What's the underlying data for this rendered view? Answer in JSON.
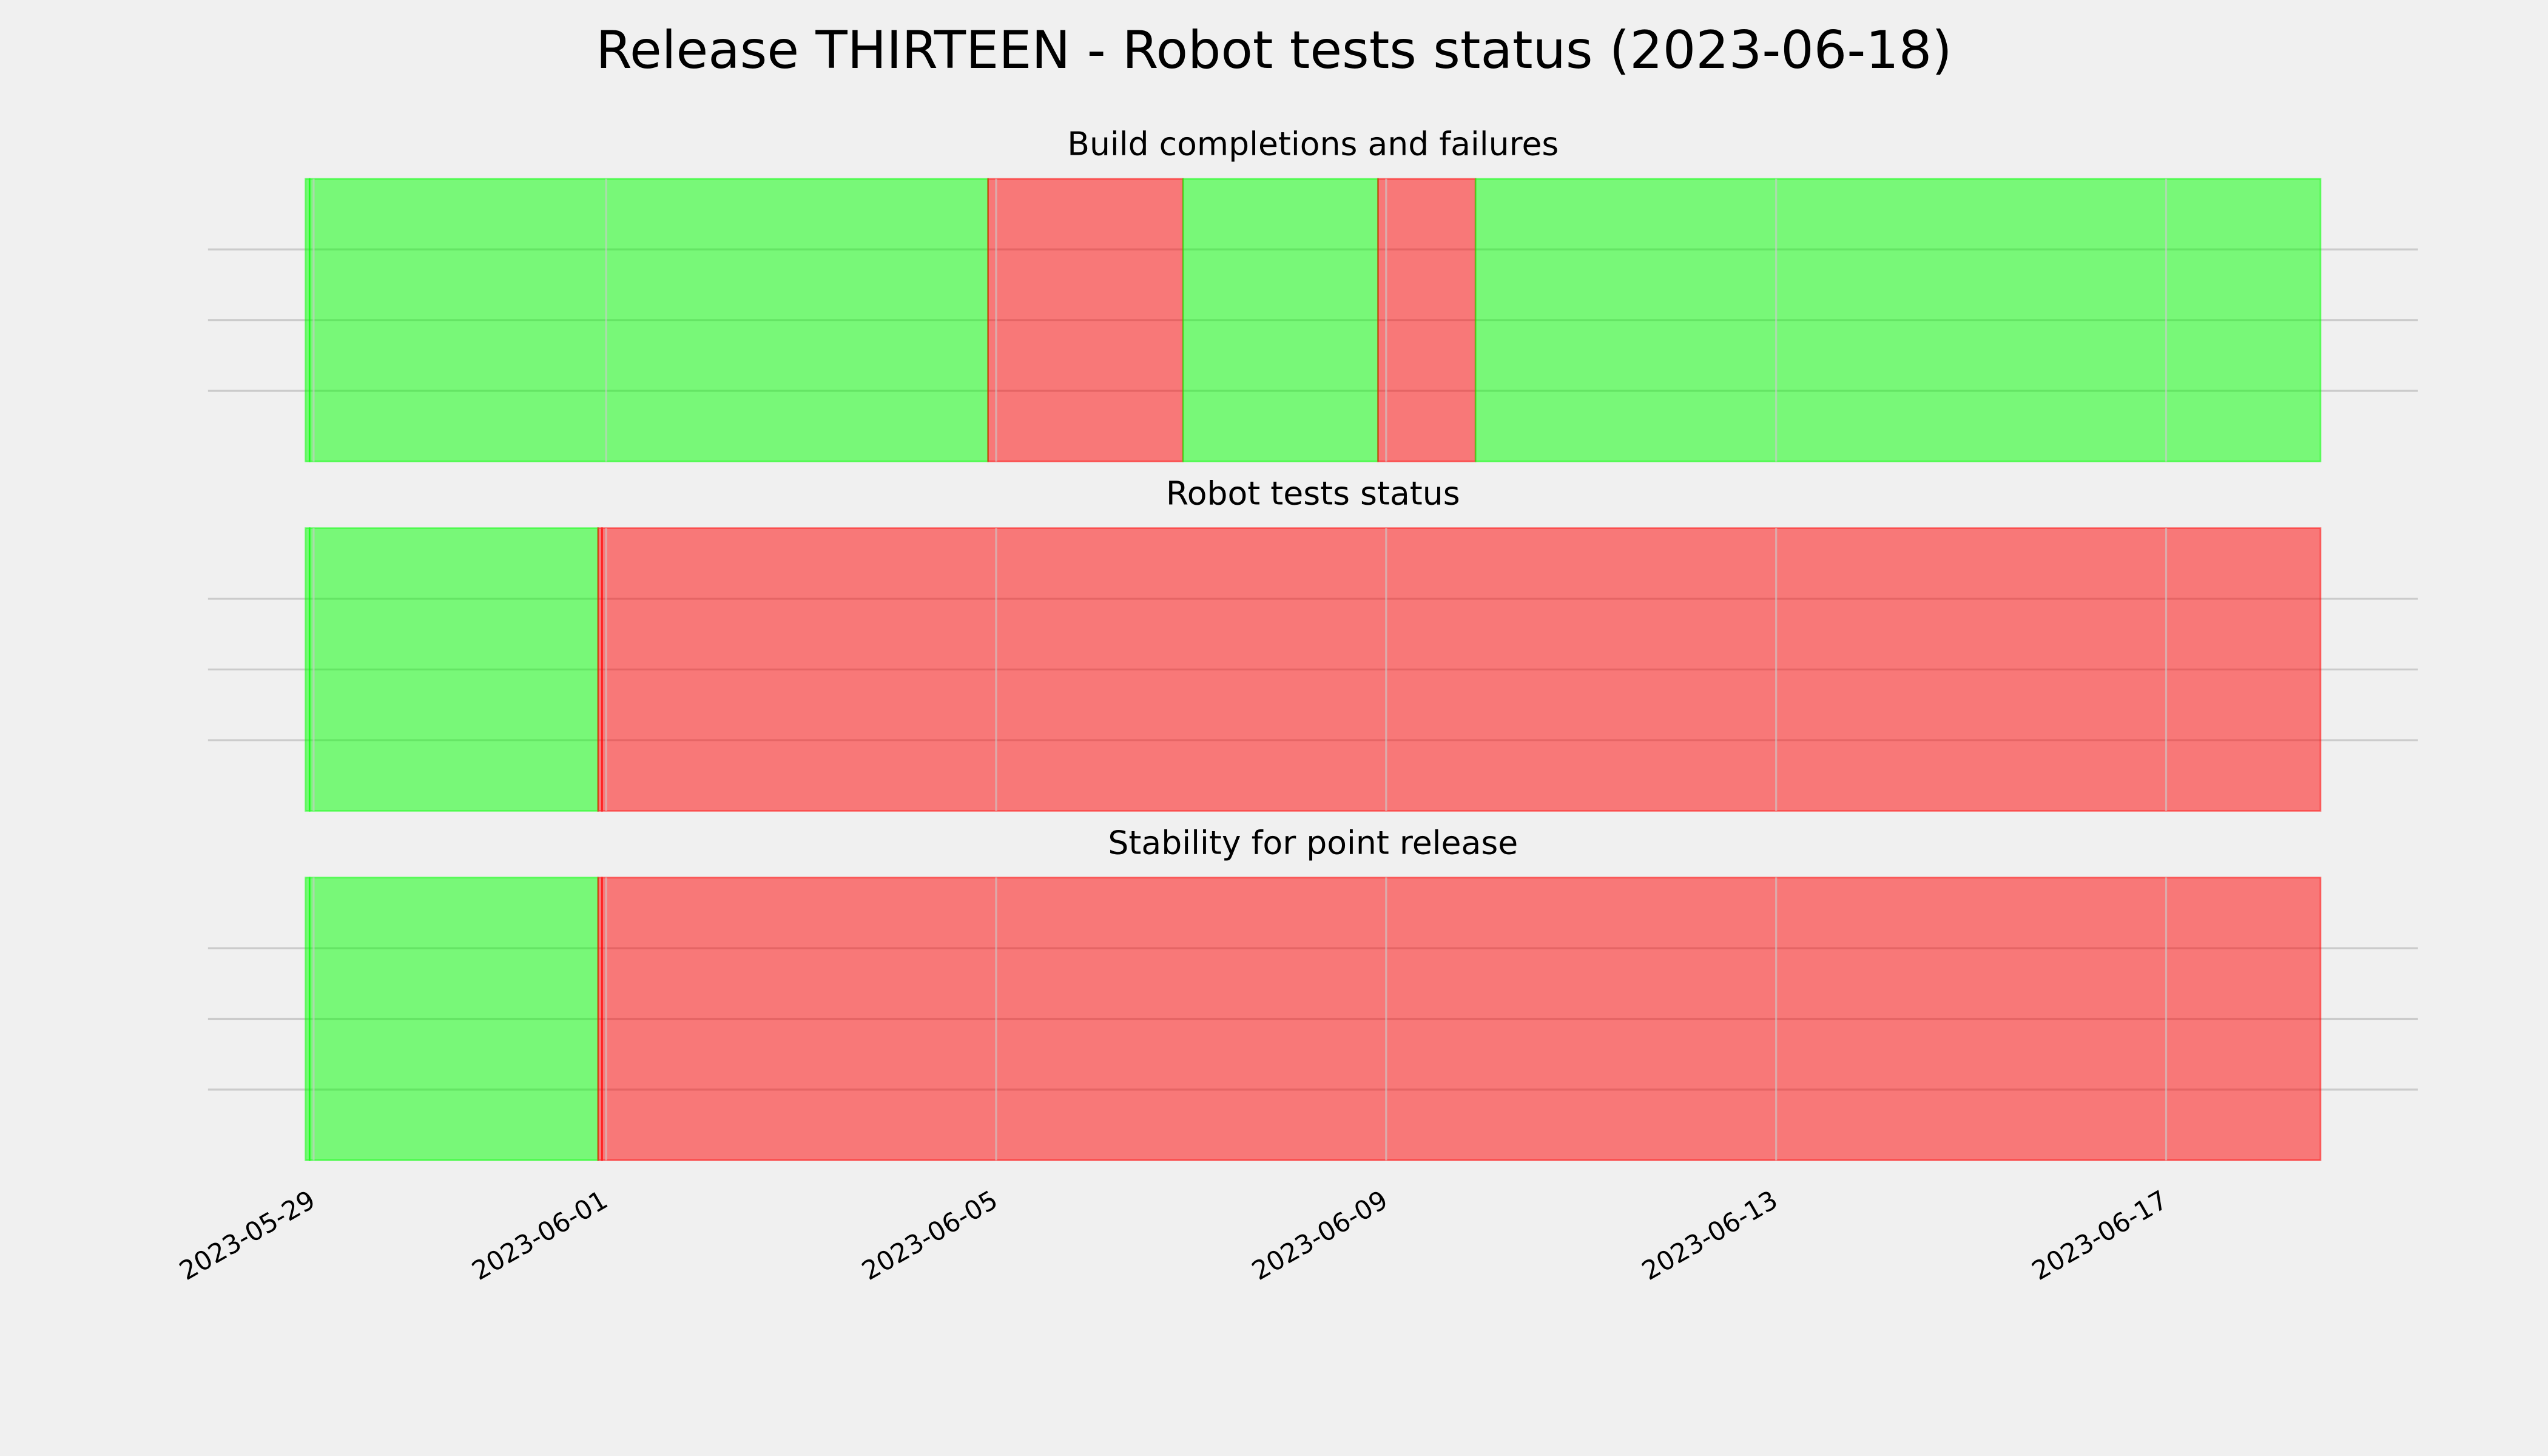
{
  "title": "Release THIRTEEN - Robot tests status (2023-06-18)",
  "xlim": [
    "2023-05-27 22:00",
    "2023-06-19 14:00"
  ],
  "xticks": [
    "2023-05-29",
    "2023-06-01",
    "2023-06-05",
    "2023-06-09",
    "2023-06-13",
    "2023-06-17"
  ],
  "grid": true,
  "alpha": 0.5,
  "chart_data": [
    {
      "type": "timeline",
      "title": "Build completions and failures",
      "ylim": [
        0,
        4
      ],
      "yticks": [
        1,
        2,
        3
      ],
      "segments": [
        {
          "start": "2023-05-28 22:00",
          "end": "2023-05-28 23:00",
          "color": "#00ff00"
        },
        {
          "start": "2023-05-28 23:00",
          "end": "2023-06-04 22:00",
          "color": "#00ff00"
        },
        {
          "start": "2023-06-04 22:00",
          "end": "2023-06-06 22:00",
          "color": "#ff0000"
        },
        {
          "start": "2023-06-06 22:00",
          "end": "2023-06-08 22:00",
          "color": "#00ff00"
        },
        {
          "start": "2023-06-08 22:00",
          "end": "2023-06-09 22:00",
          "color": "#ff0000"
        },
        {
          "start": "2023-06-09 22:00",
          "end": "2023-06-18 14:00",
          "color": "#00ff00"
        }
      ]
    },
    {
      "type": "timeline",
      "title": "Robot tests status",
      "ylim": [
        0,
        4
      ],
      "yticks": [
        1,
        2,
        3
      ],
      "segments": [
        {
          "start": "2023-05-28 22:00",
          "end": "2023-05-28 23:00",
          "color": "#00ff00"
        },
        {
          "start": "2023-05-28 23:00",
          "end": "2023-05-31 22:00",
          "color": "#00ff00"
        },
        {
          "start": "2023-05-31 22:00",
          "end": "2023-05-31 23:00",
          "color": "#ff0000"
        },
        {
          "start": "2023-05-31 23:00",
          "end": "2023-06-18 14:00",
          "color": "#ff0000"
        }
      ]
    },
    {
      "type": "timeline",
      "title": "Stability for point release",
      "ylim": [
        0,
        4
      ],
      "yticks": [
        1,
        2,
        3
      ],
      "segments": [
        {
          "start": "2023-05-28 22:00",
          "end": "2023-05-28 23:00",
          "color": "#00ff00"
        },
        {
          "start": "2023-05-28 23:00",
          "end": "2023-05-31 22:00",
          "color": "#00ff00"
        },
        {
          "start": "2023-05-31 22:00",
          "end": "2023-05-31 23:00",
          "color": "#ff0000"
        },
        {
          "start": "2023-05-31 23:00",
          "end": "2023-06-18 14:00",
          "color": "#ff0000"
        }
      ]
    }
  ]
}
